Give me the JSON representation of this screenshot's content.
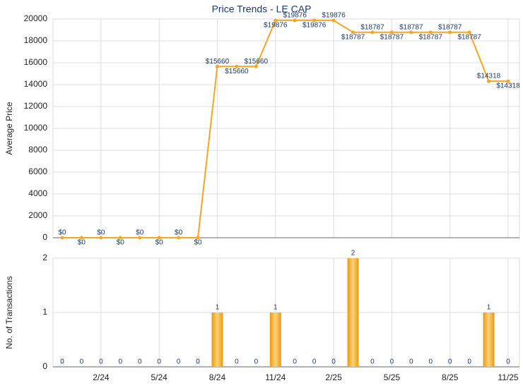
{
  "chart_data": [
    {
      "type": "line",
      "title": "Price Trends - LE CAP",
      "y_label": "Average Price",
      "color": "#f5a623",
      "values": [
        0,
        0,
        0,
        0,
        0,
        0,
        0,
        0,
        15660,
        15660,
        15660,
        19876,
        19876,
        19876,
        19876,
        18787,
        18787,
        18787,
        18787,
        18787,
        18787,
        18787,
        14318,
        14318
      ],
      "value_labels": [
        "$0",
        "$0",
        "$0",
        "$0",
        "$0",
        "$0",
        "$0",
        "$0",
        "$15660",
        "$15660",
        "$15660",
        "$19876",
        "$19876",
        "$19876",
        "$19876",
        "$18787",
        "$18787",
        "$18787",
        "$18787",
        "$18787",
        "$18787",
        "$18787",
        "$14318",
        "$14318"
      ],
      "ylim": [
        0,
        20000
      ],
      "yticks": [
        0,
        2000,
        4000,
        6000,
        8000,
        10000,
        12000,
        14000,
        16000,
        18000,
        20000
      ],
      "grid": true
    },
    {
      "type": "bar",
      "y_label": "No. of Transactions",
      "color": "#f0a020",
      "categories": [
        null,
        null,
        "2/24",
        null,
        null,
        "5/24",
        null,
        null,
        "8/24",
        null,
        null,
        "11/24",
        null,
        null,
        "2/25",
        null,
        null,
        "5/25",
        null,
        null,
        "8/25",
        null,
        null,
        "11/25"
      ],
      "values": [
        0,
        0,
        0,
        0,
        0,
        0,
        0,
        0,
        1,
        0,
        0,
        1,
        0,
        0,
        0,
        2,
        0,
        0,
        0,
        0,
        0,
        0,
        1,
        0
      ],
      "ylim": [
        0,
        2
      ],
      "yticks": [
        0,
        1,
        2
      ],
      "grid": true
    }
  ]
}
